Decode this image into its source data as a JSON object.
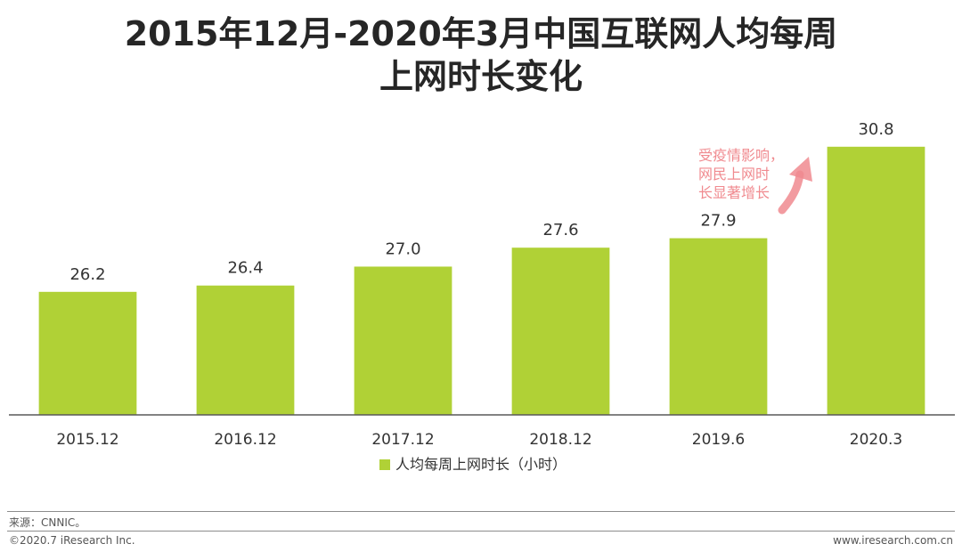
{
  "title_lines": [
    "2015年12月-2020年3月中国互联网人均每周",
    "上网时长变化"
  ],
  "chart_data": {
    "type": "bar",
    "categories": [
      "2015.12",
      "2016.12",
      "2017.12",
      "2018.12",
      "2019.6",
      "2020.3"
    ],
    "series": [
      {
        "name": "人均每周上网时长（小时）",
        "values": [
          26.2,
          26.4,
          27.0,
          27.6,
          27.9,
          30.8
        ]
      }
    ],
    "data_labels": [
      "26.2",
      "26.4",
      "27.0",
      "27.6",
      "27.9",
      "30.8"
    ],
    "ylim": [
      22.3,
      31.5
    ],
    "legend_position": "bottom-center",
    "grid": false,
    "colors": {
      "bar": "#b0d136",
      "annotation": "#f08a8f"
    },
    "annotation": {
      "lines": [
        "受疫情影响，",
        "网民上网时",
        "长显著增长"
      ],
      "points_to": "2020.3"
    }
  },
  "footer": {
    "source": "来源：CNNIC。",
    "copyright": "©2020.7 iResearch Inc.",
    "website": "www.iresearch.com.cn"
  }
}
